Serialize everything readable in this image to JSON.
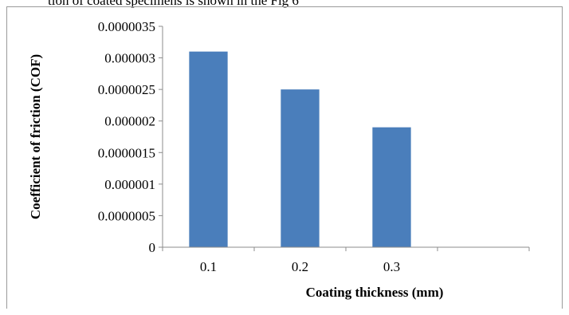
{
  "caption_fragment": "tion of coated specimens is shown in the Fig 6",
  "chart_data": {
    "type": "bar",
    "title": "",
    "xlabel": "Coating thickness (mm)",
    "ylabel": "Coefficient of friction (COF)",
    "categories": [
      "0.1",
      "0.2",
      "0.3",
      ""
    ],
    "values": [
      3.1e-06,
      2.5e-06,
      1.9e-06,
      null
    ],
    "ylim": [
      0,
      3.5e-06
    ],
    "yticks": [
      "0",
      "0.0000005",
      "0.000001",
      "0.0000015",
      "0.000002",
      "0.0000025",
      "0.000003",
      "0.0000035"
    ],
    "grid": false,
    "legend": "none",
    "bar_color": "#4a7ebb",
    "axis_color": "#8c8c8c"
  }
}
